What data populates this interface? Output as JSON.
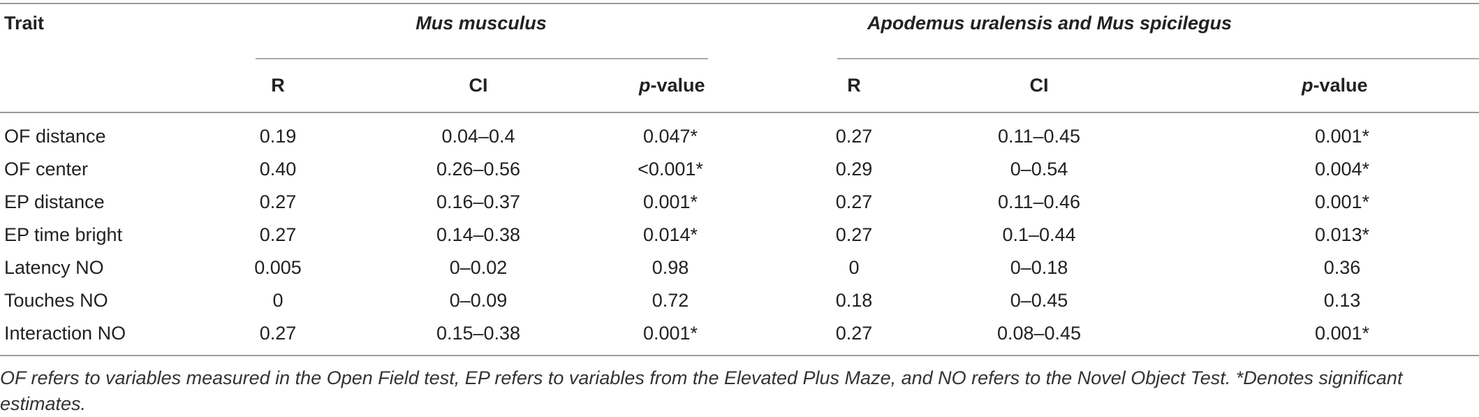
{
  "table": {
    "header": {
      "trait": "Trait",
      "group1": "Mus musculus",
      "group2": "Apodemus uralensis and Mus spicilegus",
      "r": "R",
      "ci": "CI",
      "p_italic": "p",
      "p_rest": "-value"
    },
    "rows": [
      {
        "trait": "OF distance",
        "r1": "0.19",
        "ci1": "0.04–0.4",
        "p1": "0.047*",
        "r2": "0.27",
        "ci2": "0.11–0.45",
        "p2": "0.001*"
      },
      {
        "trait": "OF center",
        "r1": "0.40",
        "ci1": "0.26–0.56",
        "p1": "<0.001*",
        "r2": "0.29",
        "ci2": "0–0.54",
        "p2": "0.004*"
      },
      {
        "trait": "EP distance",
        "r1": "0.27",
        "ci1": "0.16–0.37",
        "p1": "0.001*",
        "r2": "0.27",
        "ci2": "0.11–0.46",
        "p2": "0.001*"
      },
      {
        "trait": "EP time bright",
        "r1": "0.27",
        "ci1": "0.14–0.38",
        "p1": "0.014*",
        "r2": "0.27",
        "ci2": "0.1–0.44",
        "p2": "0.013*"
      },
      {
        "trait": "Latency NO",
        "r1": "0.005",
        "ci1": "0–0.02",
        "p1": "0.98",
        "r2": "0",
        "ci2": "0–0.18",
        "p2": "0.36"
      },
      {
        "trait": "Touches NO",
        "r1": "0",
        "ci1": "0–0.09",
        "p1": "0.72",
        "r2": "0.18",
        "ci2": "0–0.45",
        "p2": "0.13"
      },
      {
        "trait": "Interaction NO",
        "r1": "0.27",
        "ci1": "0.15–0.38",
        "p1": "0.001*",
        "r2": "0.27",
        "ci2": "0.08–0.45",
        "p2": "0.001*"
      }
    ],
    "footnote": "OF refers to variables measured in the Open Field test, EP refers to variables from the Elevated Plus Maze, and NO refers to the Novel Object Test. *Denotes significant estimates."
  }
}
